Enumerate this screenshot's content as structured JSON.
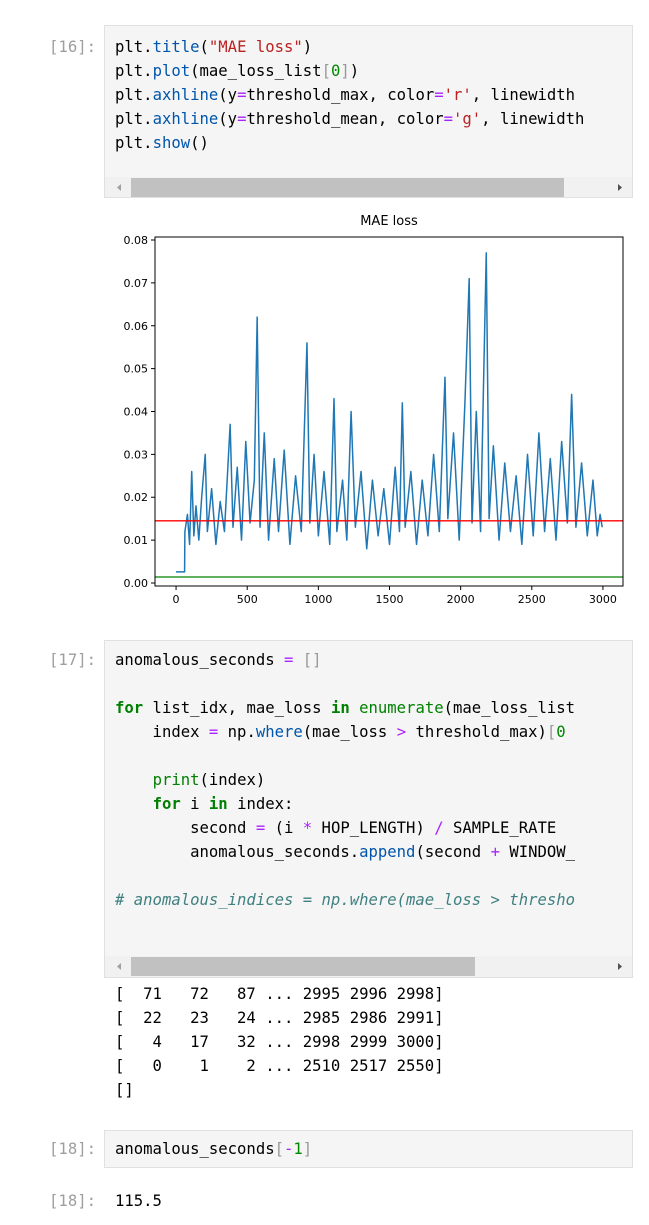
{
  "cells": [
    {
      "prompt": "[16]:",
      "code": [
        [
          {
            "text": "plt."
          },
          {
            "text": "title",
            "color": "#0055aa"
          },
          {
            "text": "("
          },
          {
            "text": "\"MAE loss\"",
            "color": "#ba2121"
          },
          {
            "text": ")"
          }
        ],
        [
          {
            "text": "plt."
          },
          {
            "text": "plot",
            "color": "#0055aa"
          },
          {
            "text": "(mae_loss_list"
          },
          {
            "text": "[",
            "color": "#999999"
          },
          {
            "text": "0",
            "color": "#008800"
          },
          {
            "text": "]",
            "color": "#999999"
          },
          {
            "text": ")"
          }
        ],
        [
          {
            "text": "plt."
          },
          {
            "text": "axhline",
            "color": "#0055aa"
          },
          {
            "text": "(y"
          },
          {
            "text": "=",
            "color": "#aa22ff"
          },
          {
            "text": "threshold_max, color"
          },
          {
            "text": "=",
            "color": "#aa22ff"
          },
          {
            "text": "'r'",
            "color": "#ba2121"
          },
          {
            "text": ", linewidth"
          }
        ],
        [
          {
            "text": "plt."
          },
          {
            "text": "axhline",
            "color": "#0055aa"
          },
          {
            "text": "(y"
          },
          {
            "text": "=",
            "color": "#aa22ff"
          },
          {
            "text": "threshold_mean, color"
          },
          {
            "text": "=",
            "color": "#aa22ff"
          },
          {
            "text": "'g'",
            "color": "#ba2121"
          },
          {
            "text": ", linewidth"
          }
        ],
        [
          {
            "text": "plt."
          },
          {
            "text": "show",
            "color": "#0055aa"
          },
          {
            "text": "()"
          }
        ]
      ]
    },
    {
      "prompt": "[17]:",
      "code": [
        [
          {
            "text": "anomalous_seconds "
          },
          {
            "text": "=",
            "color": "#aa22ff"
          },
          {
            "text": " "
          },
          {
            "text": "[]",
            "color": "#999999"
          }
        ],
        [],
        [
          {
            "text": "for",
            "color": "#008000",
            "style": "bold"
          },
          {
            "text": " list_idx, mae_loss "
          },
          {
            "text": "in",
            "color": "#008000",
            "style": "bold"
          },
          {
            "text": " "
          },
          {
            "text": "enumerate",
            "color": "#008000"
          },
          {
            "text": "(mae_loss_list"
          }
        ],
        [
          {
            "text": "    index "
          },
          {
            "text": "=",
            "color": "#aa22ff"
          },
          {
            "text": " np."
          },
          {
            "text": "where",
            "color": "#0055aa"
          },
          {
            "text": "(mae_loss "
          },
          {
            "text": ">",
            "color": "#aa22ff"
          },
          {
            "text": " threshold_max)"
          },
          {
            "text": "[",
            "color": "#999999"
          },
          {
            "text": "0",
            "color": "#008800"
          }
        ],
        [],
        [
          {
            "text": "    "
          },
          {
            "text": "print",
            "color": "#008000"
          },
          {
            "text": "(index)"
          }
        ],
        [
          {
            "text": "    "
          },
          {
            "text": "for",
            "color": "#008000",
            "style": "bold"
          },
          {
            "text": " i "
          },
          {
            "text": "in",
            "color": "#008000",
            "style": "bold"
          },
          {
            "text": " index:"
          }
        ],
        [
          {
            "text": "        second "
          },
          {
            "text": "=",
            "color": "#aa22ff"
          },
          {
            "text": " (i "
          },
          {
            "text": "*",
            "color": "#aa22ff"
          },
          {
            "text": " HOP_LENGTH) "
          },
          {
            "text": "/",
            "color": "#aa22ff"
          },
          {
            "text": " SAMPLE_RATE"
          }
        ],
        [
          {
            "text": "        anomalous_seconds."
          },
          {
            "text": "append",
            "color": "#0055aa"
          },
          {
            "text": "(second "
          },
          {
            "text": "+",
            "color": "#aa22ff"
          },
          {
            "text": " WINDOW_"
          }
        ],
        [],
        [
          {
            "text": "# anomalous_indices = np.where(mae_loss > thresho",
            "color": "#408080",
            "style": "italic"
          }
        ]
      ],
      "output": [
        "[  71   72   87 ... 2995 2996 2998]",
        "[  22   23   24 ... 2985 2986 2991]",
        "[   4   17   32 ... 2998 2999 3000]",
        "[   0    1    2 ... 2510 2517 2550]",
        "[]"
      ]
    },
    {
      "prompt": "[18]:",
      "code": [
        [
          {
            "text": "anomalous_seconds"
          },
          {
            "text": "[",
            "color": "#999999"
          },
          {
            "text": "-",
            "color": "#aa22ff"
          },
          {
            "text": "1",
            "color": "#008800"
          },
          {
            "text": "]",
            "color": "#999999"
          }
        ]
      ],
      "output_prompt": "[18]:",
      "output": [
        "115.5"
      ]
    }
  ],
  "chart_data": {
    "type": "line",
    "title": "MAE loss",
    "x": [
      0,
      60,
      62,
      80,
      95,
      110,
      125,
      140,
      160,
      180,
      205,
      220,
      250,
      280,
      310,
      340,
      380,
      400,
      430,
      460,
      490,
      520,
      550,
      570,
      590,
      620,
      650,
      690,
      720,
      760,
      800,
      840,
      880,
      920,
      940,
      970,
      1000,
      1040,
      1080,
      1110,
      1130,
      1170,
      1200,
      1230,
      1260,
      1300,
      1340,
      1380,
      1420,
      1460,
      1500,
      1540,
      1570,
      1590,
      1610,
      1650,
      1690,
      1730,
      1770,
      1810,
      1850,
      1890,
      1910,
      1950,
      1990,
      2030,
      2060,
      2080,
      2110,
      2140,
      2160,
      2180,
      2200,
      2230,
      2270,
      2310,
      2350,
      2390,
      2430,
      2470,
      2510,
      2550,
      2590,
      2630,
      2670,
      2710,
      2750,
      2780,
      2810,
      2850,
      2890,
      2930,
      2960,
      2980,
      2995
    ],
    "series": [
      {
        "color": "#1f77b4",
        "values": [
          0.0026,
          0.0026,
          0.012,
          0.016,
          0.009,
          0.026,
          0.011,
          0.018,
          0.01,
          0.02,
          0.03,
          0.012,
          0.022,
          0.009,
          0.019,
          0.012,
          0.037,
          0.013,
          0.027,
          0.01,
          0.033,
          0.014,
          0.024,
          0.062,
          0.013,
          0.035,
          0.01,
          0.029,
          0.012,
          0.031,
          0.009,
          0.025,
          0.012,
          0.056,
          0.014,
          0.03,
          0.011,
          0.026,
          0.009,
          0.043,
          0.012,
          0.024,
          0.01,
          0.04,
          0.013,
          0.026,
          0.008,
          0.024,
          0.011,
          0.022,
          0.009,
          0.027,
          0.012,
          0.042,
          0.013,
          0.026,
          0.009,
          0.024,
          0.011,
          0.03,
          0.012,
          0.048,
          0.015,
          0.035,
          0.01,
          0.042,
          0.071,
          0.014,
          0.04,
          0.012,
          0.045,
          0.077,
          0.015,
          0.032,
          0.01,
          0.028,
          0.012,
          0.025,
          0.009,
          0.03,
          0.011,
          0.035,
          0.012,
          0.029,
          0.01,
          0.033,
          0.014,
          0.044,
          0.013,
          0.028,
          0.011,
          0.024,
          0.011,
          0.016,
          0.013
        ]
      }
    ],
    "hlines": [
      {
        "value": 0.0145,
        "color": "#ff0000"
      },
      {
        "value": 0.0014,
        "color": "#008000"
      }
    ],
    "xlim": [
      -148,
      3141
    ],
    "ylim": [
      -0.0007,
      0.0807
    ],
    "xticks": [
      0,
      500,
      1000,
      1500,
      2000,
      2500,
      3000
    ],
    "yticks": [
      {
        "value": 0,
        "label": "0.00"
      },
      {
        "value": 0.01,
        "label": "0.01"
      },
      {
        "value": 0.02,
        "label": "0.02"
      },
      {
        "value": 0.03,
        "label": "0.03"
      },
      {
        "value": 0.04,
        "label": "0.04"
      },
      {
        "value": 0.05,
        "label": "0.05"
      },
      {
        "value": 0.06,
        "label": "0.06"
      },
      {
        "value": 0.07,
        "label": "0.07"
      },
      {
        "value": 0.08,
        "label": "0.08"
      }
    ]
  }
}
